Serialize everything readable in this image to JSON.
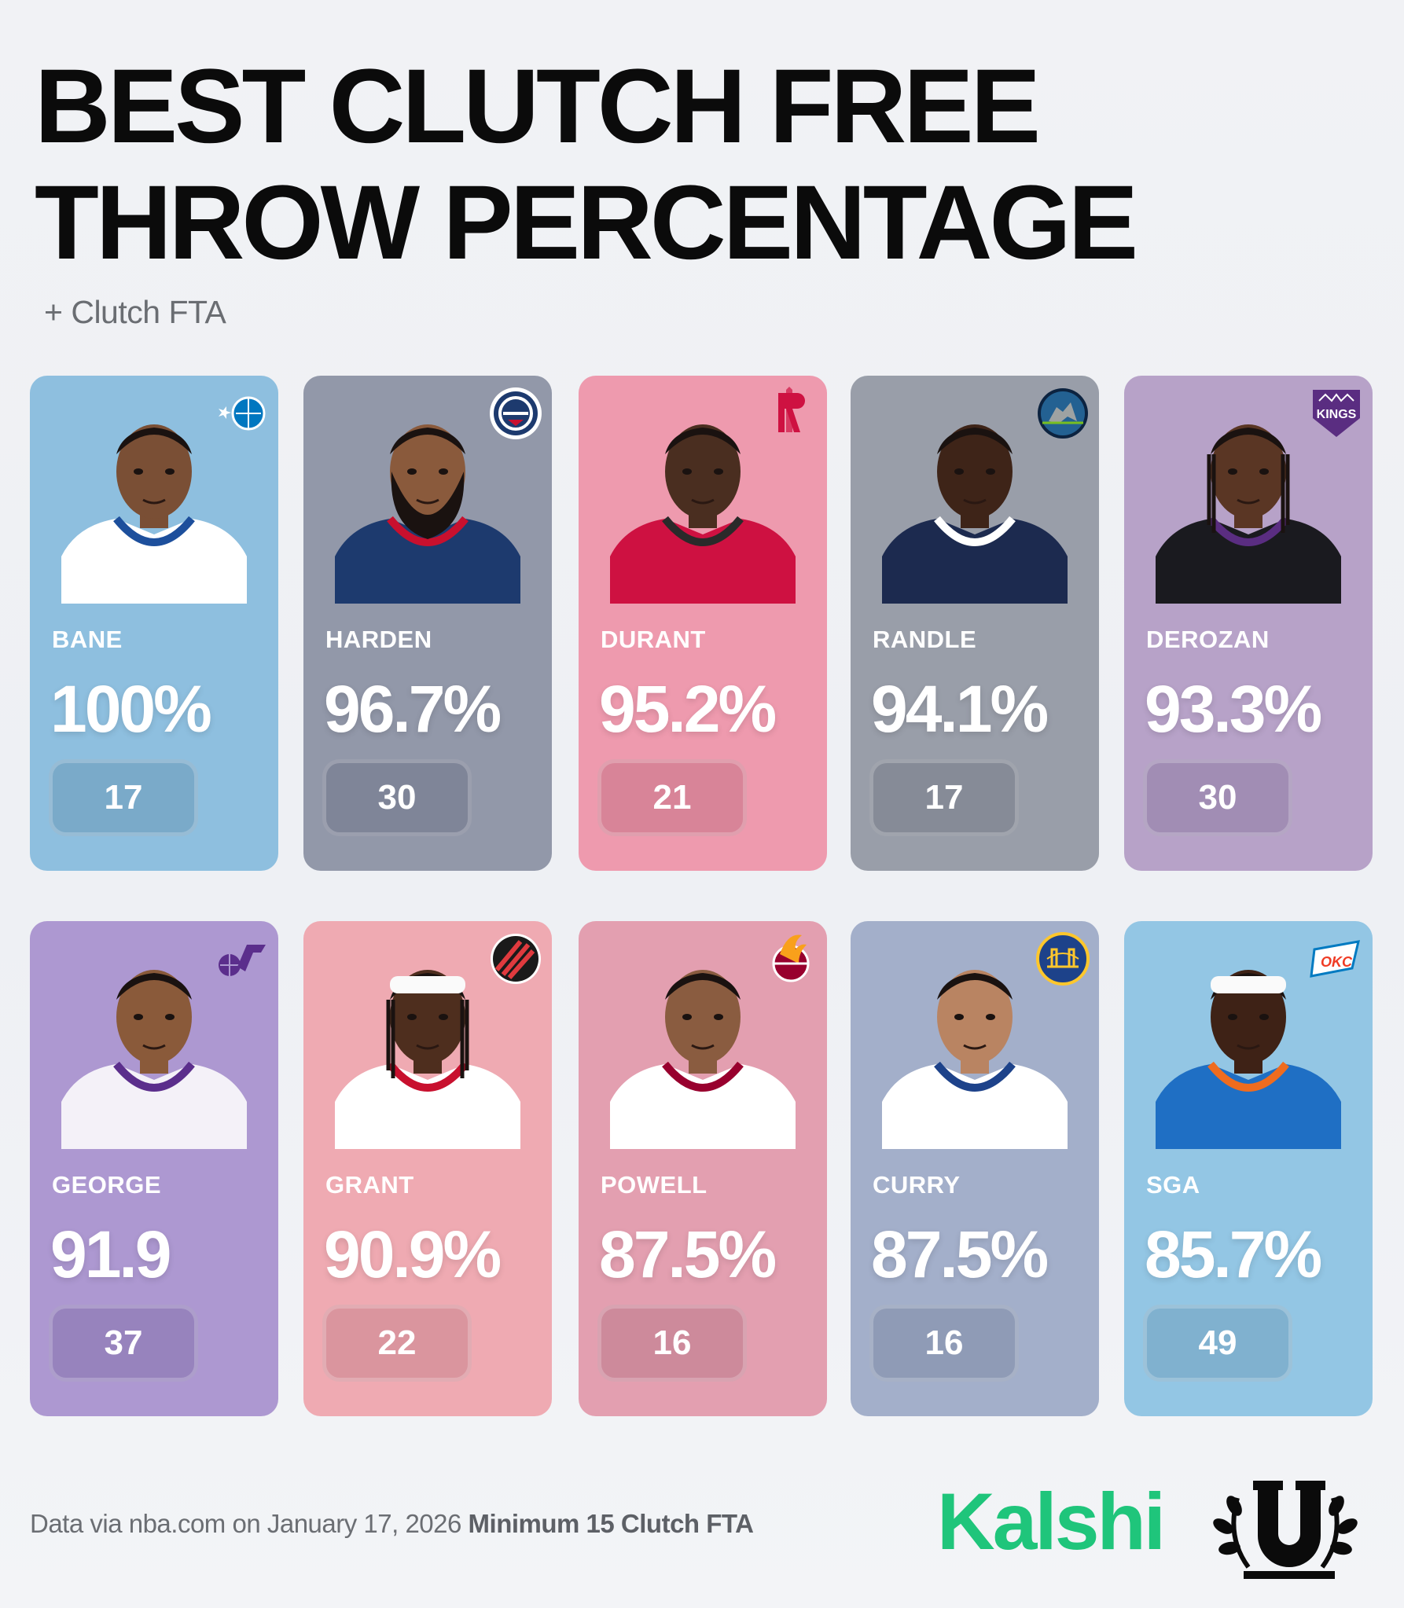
{
  "header": {
    "title_line1": "BEST CLUTCH FREE",
    "title_line2": "THROW PERCENTAGE",
    "subtitle": "+ Clutch FTA"
  },
  "players": [
    {
      "name": "BANE",
      "pct": "100%",
      "fta": "17",
      "bg": "#8ebfdf",
      "pill": "#7aaac9",
      "jersey": "#ffffff",
      "trim": "#1d4f9c",
      "team_logo": "magic-logo"
    },
    {
      "name": "HARDEN",
      "pct": "96.7%",
      "fta": "30",
      "bg": "#9298a9",
      "pill": "#7f8598",
      "jersey": "#1d3a6e",
      "trim": "#c8102e",
      "team_logo": "clippers-logo"
    },
    {
      "name": "DURANT",
      "pct": "95.2%",
      "fta": "21",
      "bg": "#ee9aae",
      "pill": "#d88498",
      "jersey": "#ce1141",
      "trim": "#2a2a2a",
      "team_logo": "rockets-logo"
    },
    {
      "name": "RANDLE",
      "pct": "94.1%",
      "fta": "17",
      "bg": "#999ea9",
      "pill": "#868b97",
      "jersey": "#1c2a4f",
      "trim": "#ffffff",
      "team_logo": "timberwolves-logo"
    },
    {
      "name": "DEROZAN",
      "pct": "93.3%",
      "fta": "30",
      "bg": "#b7a2c8",
      "pill": "#a18db4",
      "jersey": "#1a1a1f",
      "trim": "#5a2d81",
      "team_logo": "kings-logo"
    },
    {
      "name": "GEORGE",
      "pct": "91.9",
      "fta": "37",
      "bg": "#ad98d1",
      "pill": "#9783bd",
      "jersey": "#f4f1f8",
      "trim": "#5b2e8c",
      "team_logo": "jazz-logo"
    },
    {
      "name": "GRANT",
      "pct": "90.9%",
      "fta": "22",
      "bg": "#efaab2",
      "pill": "#da959e",
      "jersey": "#ffffff",
      "trim": "#c8102e",
      "team_logo": "blazers-logo"
    },
    {
      "name": "POWELL",
      "pct": "87.5%",
      "fta": "16",
      "bg": "#e39fb0",
      "pill": "#cd8a9b",
      "jersey": "#ffffff",
      "trim": "#98002e",
      "team_logo": "heat-logo"
    },
    {
      "name": "CURRY",
      "pct": "87.5%",
      "fta": "16",
      "bg": "#a3afca",
      "pill": "#8f9bb6",
      "jersey": "#ffffff",
      "trim": "#1d428a",
      "team_logo": "warriors-logo"
    },
    {
      "name": "SGA",
      "pct": "85.7%",
      "fta": "49",
      "bg": "#93c6e4",
      "pill": "#80b1cf",
      "jersey": "#1f6fc4",
      "trim": "#ef6c1f",
      "team_logo": "thunder-logo"
    }
  ],
  "footer": {
    "source": "Data via nba.com on January 17, 2026",
    "minimum": "Minimum 15 Clutch FTA"
  },
  "brand": {
    "kalshi": "Kalshi",
    "kalshi_color": "#1fc57b"
  }
}
